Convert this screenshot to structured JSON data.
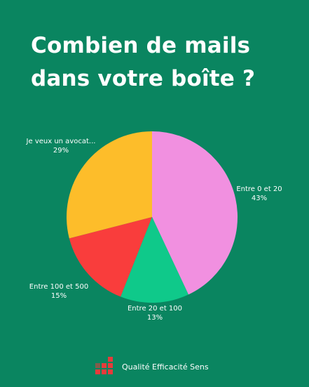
{
  "title": {
    "line1": "Combien de mails",
    "line2": "dans votre boîte ?"
  },
  "chart_data": {
    "type": "pie",
    "slices": [
      {
        "label": "Entre 0 et 20",
        "percent_label": "43%",
        "value": 43,
        "color": "#f190e0"
      },
      {
        "label": "Entre 20 et 100",
        "percent_label": "13%",
        "value": 13,
        "color": "#0fc98a"
      },
      {
        "label": "Entre 100 et 500",
        "percent_label": "15%",
        "value": 15,
        "color": "#f93d3c"
      },
      {
        "label": "Je veux un avocat...",
        "percent_label": "29%",
        "value": 29,
        "color": "#fdbd2a"
      }
    ]
  },
  "footer": {
    "brand": "Qualité Efficacité Sens"
  },
  "colors": {
    "background": "#0a8560",
    "logo": "#e53b3b",
    "text": "#ffffff"
  },
  "icons": {
    "logo": "red-squares-logo-icon"
  }
}
